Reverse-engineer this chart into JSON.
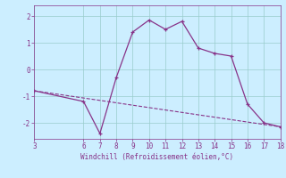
{
  "xlabel": "Windchill (Refroidissement éolien,°C)",
  "line1_x": [
    3,
    6,
    7,
    8,
    9,
    10,
    11,
    12,
    13,
    14,
    15,
    16,
    17,
    18
  ],
  "line1_y": [
    -0.8,
    -1.2,
    -2.4,
    -0.3,
    1.4,
    1.85,
    1.5,
    1.8,
    0.8,
    0.6,
    0.5,
    -1.3,
    -2.0,
    -2.15
  ],
  "line2_x": [
    3,
    18
  ],
  "line2_y": [
    -0.8,
    -2.15
  ],
  "color": "#883388",
  "bg_color": "#cceeff",
  "grid_color": "#99cccc",
  "xlim": [
    3,
    18
  ],
  "ylim": [
    -2.6,
    2.4
  ],
  "yticks": [
    -2,
    -1,
    0,
    1,
    2
  ],
  "xticks": [
    3,
    6,
    7,
    8,
    9,
    10,
    11,
    12,
    13,
    14,
    15,
    16,
    17,
    18
  ]
}
